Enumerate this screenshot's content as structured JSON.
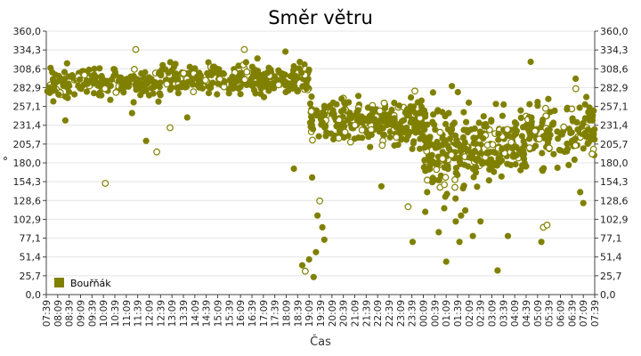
{
  "chart_data": {
    "type": "scatter",
    "title": "Směr větru",
    "xlabel": "Čas",
    "ylabel": "°",
    "ylim": [
      0,
      360
    ],
    "y_ticks": [
      "0,0",
      "25,7",
      "51,4",
      "77,1",
      "102,9",
      "128,6",
      "154,3",
      "180,0",
      "205,7",
      "231,4",
      "257,1",
      "282,9",
      "308,6",
      "334,3",
      "360,0"
    ],
    "y_ticks_right": true,
    "x_ticks": [
      "07:39",
      "08:09",
      "08:39",
      "09:09",
      "09:39",
      "10:09",
      "10:39",
      "11:09",
      "11:39",
      "12:09",
      "12:39",
      "13:09",
      "13:39",
      "14:09",
      "14:39",
      "15:09",
      "15:39",
      "16:09",
      "16:39",
      "17:09",
      "17:39",
      "18:09",
      "18:39",
      "19:09",
      "19:39",
      "20:09",
      "20:39",
      "21:09",
      "21:39",
      "22:09",
      "22:39",
      "23:09",
      "23:39",
      "00:09",
      "00:39",
      "01:09",
      "01:39",
      "02:09",
      "02:39",
      "03:09",
      "03:39",
      "04:09",
      "04:39",
      "05:09",
      "05:39",
      "06:09",
      "06:39",
      "07:09",
      "07:39"
    ],
    "x_unit": "minutes after 07:39",
    "x_range": [
      0,
      1440
    ],
    "grid": "horizontal",
    "legend_position": "bottom-left",
    "series": [
      {
        "name": "Bouřňák",
        "color": "#808000",
        "marker": "circle",
        "segments": [
          {
            "from": 0,
            "to": 300,
            "center": 288,
            "spread": 10,
            "count": 190
          },
          {
            "from": 300,
            "to": 690,
            "center": 294,
            "spread": 11,
            "count": 240
          },
          {
            "from": 690,
            "to": 810,
            "center": 240,
            "spread": 16,
            "count": 90
          },
          {
            "from": 810,
            "to": 990,
            "center": 235,
            "spread": 16,
            "count": 160
          },
          {
            "from": 990,
            "to": 1110,
            "center": 198,
            "spread": 30,
            "count": 150
          },
          {
            "from": 1110,
            "to": 1260,
            "center": 200,
            "spread": 22,
            "count": 140
          },
          {
            "from": 1260,
            "to": 1440,
            "center": 222,
            "spread": 20,
            "count": 140
          }
        ],
        "outliers": [
          {
            "x": 50,
            "y": 238
          },
          {
            "x": 155,
            "y": 152
          },
          {
            "x": 225,
            "y": 248
          },
          {
            "x": 235,
            "y": 335
          },
          {
            "x": 262,
            "y": 210
          },
          {
            "x": 290,
            "y": 195
          },
          {
            "x": 325,
            "y": 228
          },
          {
            "x": 370,
            "y": 242
          },
          {
            "x": 520,
            "y": 335
          },
          {
            "x": 628,
            "y": 332
          },
          {
            "x": 650,
            "y": 172
          },
          {
            "x": 672,
            "y": 40
          },
          {
            "x": 680,
            "y": 32
          },
          {
            "x": 690,
            "y": 48
          },
          {
            "x": 698,
            "y": 160
          },
          {
            "x": 702,
            "y": 24
          },
          {
            "x": 708,
            "y": 58
          },
          {
            "x": 712,
            "y": 108
          },
          {
            "x": 718,
            "y": 128
          },
          {
            "x": 725,
            "y": 92
          },
          {
            "x": 730,
            "y": 75
          },
          {
            "x": 745,
            "y": 258
          },
          {
            "x": 880,
            "y": 148
          },
          {
            "x": 950,
            "y": 120
          },
          {
            "x": 962,
            "y": 72
          },
          {
            "x": 985,
            "y": 265
          },
          {
            "x": 1000,
            "y": 140
          },
          {
            "x": 1045,
            "y": 118
          },
          {
            "x": 1050,
            "y": 45
          },
          {
            "x": 1065,
            "y": 285
          },
          {
            "x": 1075,
            "y": 100
          },
          {
            "x": 1085,
            "y": 72
          },
          {
            "x": 1100,
            "y": 115
          },
          {
            "x": 1120,
            "y": 80
          },
          {
            "x": 1140,
            "y": 100
          },
          {
            "x": 1185,
            "y": 33
          },
          {
            "x": 1212,
            "y": 80
          },
          {
            "x": 1272,
            "y": 318
          },
          {
            "x": 1300,
            "y": 72
          },
          {
            "x": 1305,
            "y": 92
          },
          {
            "x": 1315,
            "y": 95
          },
          {
            "x": 1390,
            "y": 295
          },
          {
            "x": 1402,
            "y": 140
          },
          {
            "x": 1410,
            "y": 125
          },
          {
            "x": 1418,
            "y": 270
          }
        ]
      }
    ]
  }
}
